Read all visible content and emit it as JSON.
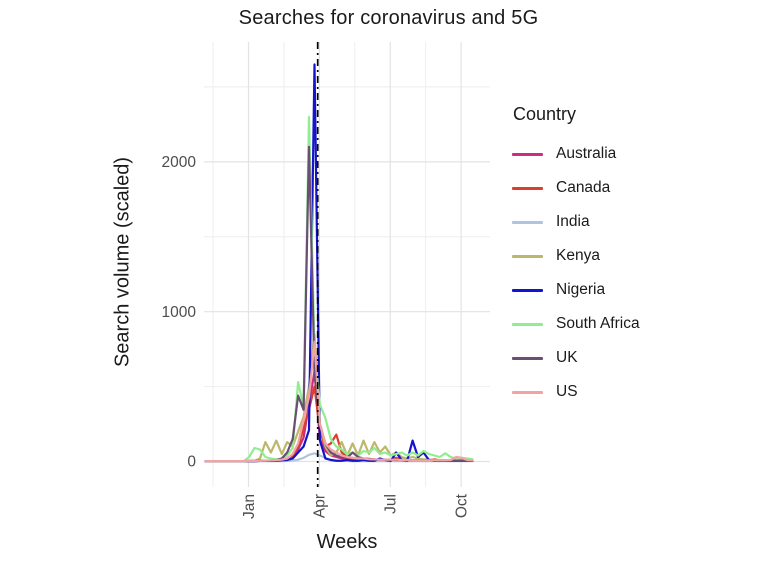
{
  "chart_data": {
    "type": "line",
    "title": "Searches for coronavirus and 5G",
    "xlabel": "Weeks",
    "ylabel": "Search volume (scaled)",
    "legend_title": "Country",
    "grid": "on",
    "legend_position": "right",
    "x_unit": "weekly points starting Nov 2019",
    "x_ticks": [
      {
        "label": "Jan",
        "week": 7.9
      },
      {
        "label": "Apr",
        "week": 20.9
      },
      {
        "label": "Jul",
        "week": 33.9
      },
      {
        "label": "Oct",
        "week": 46.9
      }
    ],
    "x_minor_weeks": [
      1.4,
      14.4,
      27.4,
      40.4
    ],
    "y_ticks": [
      {
        "value": 0,
        "label": "0"
      },
      {
        "value": 1000,
        "label": "1000"
      },
      {
        "value": 2000,
        "label": "2000"
      }
    ],
    "y_minor": [
      500,
      1500,
      2500
    ],
    "ylim": [
      -170,
      2800
    ],
    "vline_week": 20.6,
    "vline_color": "#000000",
    "vline_style": "dash-dot",
    "tick_label_color": "#4d4d4d",
    "major_grid_color": "#e3e3e3",
    "minor_grid_color": "#eeeeee",
    "series": [
      {
        "name": "Australia",
        "color": "#cc2d7e",
        "values": [
          2,
          2,
          2,
          2,
          2,
          2,
          2,
          3,
          3,
          4,
          5,
          5,
          6,
          8,
          10,
          15,
          30,
          80,
          160,
          380,
          600,
          150,
          70,
          40,
          30,
          20,
          15,
          12,
          10,
          10,
          12,
          10,
          8,
          8,
          10,
          8,
          8,
          6,
          6,
          5,
          5,
          5,
          5,
          5,
          5,
          5,
          8,
          6,
          5,
          5
        ]
      },
      {
        "name": "Canada",
        "color": "#dc3d2c",
        "values": [
          3,
          3,
          3,
          3,
          3,
          3,
          3,
          3,
          4,
          4,
          5,
          5,
          6,
          8,
          12,
          20,
          40,
          100,
          220,
          350,
          500,
          200,
          100,
          120,
          180,
          60,
          30,
          25,
          20,
          15,
          15,
          12,
          10,
          10,
          12,
          25,
          12,
          10,
          8,
          8,
          8,
          8,
          15,
          8,
          8,
          8,
          8,
          8,
          6,
          5
        ]
      },
      {
        "name": "India",
        "color": "#b0c4de",
        "values": [
          2,
          2,
          2,
          2,
          2,
          2,
          2,
          2,
          2,
          2,
          2,
          2,
          2,
          3,
          3,
          4,
          6,
          12,
          25,
          45,
          55,
          40,
          25,
          12,
          8,
          5,
          4,
          3,
          3,
          3,
          3,
          3,
          3,
          3,
          3,
          3,
          3,
          3,
          2,
          2,
          2,
          2,
          2,
          2,
          2,
          2,
          2,
          2,
          2,
          2
        ]
      },
      {
        "name": "Kenya",
        "color": "#bdb76b",
        "values": [
          2,
          2,
          2,
          2,
          2,
          2,
          2,
          2,
          3,
          5,
          20,
          130,
          60,
          140,
          50,
          130,
          100,
          200,
          300,
          500,
          850,
          250,
          100,
          40,
          60,
          130,
          40,
          120,
          40,
          140,
          50,
          130,
          60,
          100,
          40,
          60,
          30,
          20,
          30,
          20,
          15,
          12,
          10,
          10,
          8,
          8,
          8,
          8,
          6,
          5
        ]
      },
      {
        "name": "Nigeria",
        "color": "#1414cc",
        "values": [
          2,
          2,
          2,
          2,
          2,
          2,
          2,
          2,
          3,
          3,
          4,
          5,
          5,
          6,
          8,
          10,
          20,
          60,
          100,
          210,
          2650,
          140,
          20,
          10,
          5,
          5,
          10,
          5,
          5,
          10,
          5,
          5,
          20,
          10,
          5,
          60,
          10,
          5,
          140,
          30,
          60,
          10,
          5,
          5,
          5,
          5,
          5,
          5,
          5,
          5
        ]
      },
      {
        "name": "South Africa",
        "color": "#90ee90",
        "values": [
          2,
          2,
          2,
          2,
          2,
          2,
          2,
          2,
          30,
          90,
          80,
          30,
          20,
          15,
          20,
          40,
          90,
          530,
          365,
          2300,
          750,
          380,
          290,
          150,
          100,
          80,
          50,
          60,
          40,
          70,
          60,
          90,
          50,
          60,
          40,
          50,
          60,
          40,
          60,
          40,
          70,
          50,
          40,
          30,
          55,
          30,
          20,
          25,
          20,
          15
        ]
      },
      {
        "name": "UK",
        "color": "#6b4e74",
        "values": [
          2,
          2,
          2,
          2,
          2,
          2,
          2,
          2,
          3,
          3,
          4,
          5,
          6,
          10,
          20,
          60,
          150,
          440,
          345,
          2100,
          600,
          250,
          120,
          60,
          40,
          30,
          25,
          60,
          30,
          20,
          18,
          15,
          12,
          12,
          12,
          10,
          10,
          8,
          8,
          8,
          8,
          8,
          8,
          6,
          6,
          6,
          5,
          5,
          5,
          5
        ]
      },
      {
        "name": "US",
        "color": "#f2a3a3",
        "values": [
          3,
          3,
          3,
          3,
          3,
          3,
          3,
          3,
          4,
          4,
          5,
          6,
          8,
          10,
          12,
          20,
          50,
          120,
          280,
          430,
          800,
          250,
          120,
          80,
          60,
          40,
          30,
          25,
          20,
          20,
          15,
          14,
          12,
          12,
          12,
          12,
          10,
          10,
          8,
          8,
          8,
          8,
          8,
          8,
          8,
          10,
          30,
          25,
          10,
          8
        ]
      }
    ]
  }
}
